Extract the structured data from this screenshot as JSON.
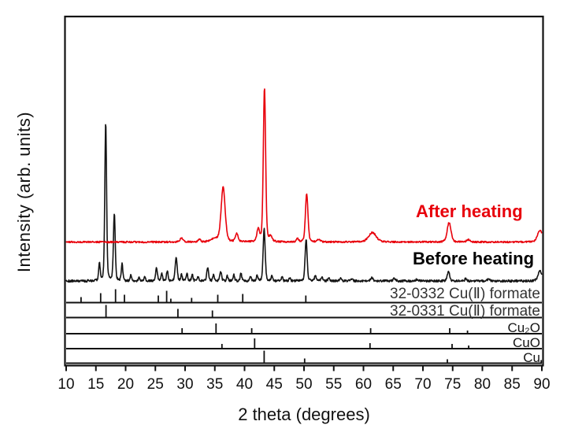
{
  "chart_data": {
    "type": "line",
    "title": "",
    "xlabel": "2 theta (degrees)",
    "ylabel": "Intensity (arb. units)",
    "xlim": [
      10,
      90
    ],
    "x_ticks": [
      10,
      15,
      20,
      25,
      30,
      35,
      40,
      45,
      50,
      55,
      60,
      65,
      70,
      75,
      80,
      85,
      90
    ],
    "grid": false,
    "legend_position": "inline-annotations",
    "series": [
      {
        "name": "After heating",
        "color": "#e8000b",
        "peaks_format": "[two_theta_deg, rel_intensity, fwhm_deg]",
        "peaks": [
          [
            29.4,
            5,
            0.6
          ],
          [
            32.4,
            3,
            0.5
          ],
          [
            35.0,
            4,
            1.5
          ],
          [
            36.4,
            69,
            0.8
          ],
          [
            38.7,
            10,
            0.55
          ],
          [
            42.3,
            15,
            0.55
          ],
          [
            43.35,
            197,
            0.45
          ],
          [
            44.4,
            6,
            0.6
          ],
          [
            48.9,
            4,
            0.5
          ],
          [
            50.45,
            62,
            0.5
          ],
          [
            52.5,
            3,
            0.6
          ],
          [
            61.5,
            12,
            1.5
          ],
          [
            74.4,
            25,
            0.75
          ],
          [
            77.6,
            3,
            0.6
          ],
          [
            89.7,
            15,
            1.0
          ]
        ]
      },
      {
        "name": "Before heating",
        "color": "#141414",
        "peaks_format": "[two_theta_deg, rel_intensity, fwhm_deg]",
        "peaks": [
          [
            15.6,
            22,
            0.3
          ],
          [
            16.65,
            203,
            0.35
          ],
          [
            18.1,
            86,
            0.35
          ],
          [
            19.4,
            22,
            0.3
          ],
          [
            20.9,
            7,
            0.3
          ],
          [
            22.3,
            4,
            0.3
          ],
          [
            23.2,
            5,
            0.3
          ],
          [
            25.2,
            17,
            0.35
          ],
          [
            26.1,
            9,
            0.3
          ],
          [
            27.0,
            13,
            0.3
          ],
          [
            28.5,
            30,
            0.4
          ],
          [
            29.4,
            8,
            0.3
          ],
          [
            30.3,
            10,
            0.3
          ],
          [
            31.2,
            8,
            0.3
          ],
          [
            32.2,
            5,
            0.3
          ],
          [
            33.8,
            17,
            0.35
          ],
          [
            34.8,
            8,
            0.3
          ],
          [
            36.0,
            12,
            0.35
          ],
          [
            37.1,
            6,
            0.3
          ],
          [
            38.2,
            8,
            0.3
          ],
          [
            39.4,
            10,
            0.3
          ],
          [
            41.0,
            6,
            0.3
          ],
          [
            42.1,
            7,
            0.3
          ],
          [
            43.3,
            66,
            0.4
          ],
          [
            44.6,
            6,
            0.3
          ],
          [
            46.3,
            5,
            0.3
          ],
          [
            47.6,
            4,
            0.3
          ],
          [
            50.35,
            53,
            0.4
          ],
          [
            51.9,
            6,
            0.35
          ],
          [
            53.0,
            5,
            0.35
          ],
          [
            54.2,
            4,
            0.35
          ],
          [
            56.1,
            3,
            0.4
          ],
          [
            58.0,
            3,
            0.4
          ],
          [
            61.4,
            4,
            0.5
          ],
          [
            65.2,
            3,
            0.5
          ],
          [
            69.0,
            2,
            0.5
          ],
          [
            74.3,
            13,
            0.45
          ],
          [
            77.2,
            3,
            0.4
          ],
          [
            81.0,
            2,
            0.5
          ],
          [
            89.7,
            13,
            0.8
          ]
        ]
      }
    ],
    "reference_patterns": [
      {
        "label": "32-0332 Cu(Ⅱ) formate",
        "sticks_format": "[two_theta_deg, rel_height]",
        "sticks": [
          [
            12.5,
            7
          ],
          [
            15.8,
            12
          ],
          [
            18.3,
            17
          ],
          [
            19.8,
            10
          ],
          [
            25.5,
            9
          ],
          [
            26.9,
            15
          ],
          [
            27.6,
            5
          ],
          [
            31.1,
            6
          ],
          [
            35.5,
            10
          ],
          [
            39.7,
            11
          ],
          [
            50.3,
            9
          ]
        ]
      },
      {
        "label": "32-0331 Cu(Ⅱ) formate",
        "sticks_format": "[two_theta_deg, rel_height]",
        "sticks": [
          [
            16.7,
            16
          ],
          [
            28.8,
            11
          ],
          [
            34.6,
            9
          ]
        ]
      },
      {
        "label": "Cu₂O",
        "sticks_format": "[two_theta_deg, rel_height]",
        "sticks": [
          [
            29.5,
            7
          ],
          [
            35.2,
            13
          ],
          [
            41.2,
            7
          ],
          [
            61.2,
            7
          ],
          [
            74.5,
            7
          ],
          [
            77.5,
            4
          ]
        ]
      },
      {
        "label": "CuO",
        "sticks_format": "[two_theta_deg, rel_height]",
        "sticks": [
          [
            36.2,
            6
          ],
          [
            41.7,
            13
          ],
          [
            61.1,
            7
          ],
          [
            74.9,
            6
          ],
          [
            77.7,
            4
          ]
        ]
      },
      {
        "label": "Cu",
        "sticks_format": "[two_theta_deg, rel_height]",
        "sticks": [
          [
            43.3,
            16
          ],
          [
            50.1,
            6
          ],
          [
            74.1,
            5
          ],
          [
            89.9,
            4
          ]
        ]
      }
    ]
  }
}
